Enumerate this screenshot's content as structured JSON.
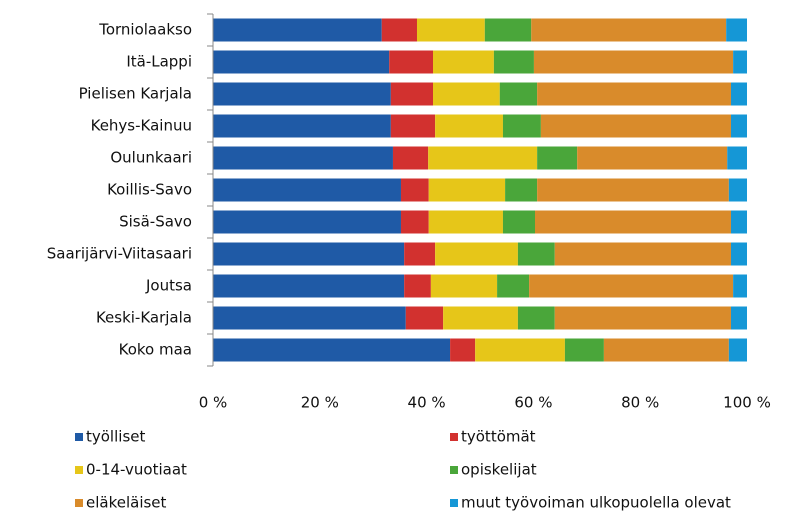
{
  "chart_data": {
    "type": "stacked-bar-horizontal",
    "categories": [
      "Torniolaakso",
      "Itä-Lappi",
      "Pielisen Karjala",
      "Kehys-Kainuu",
      "Oulunkaari",
      "Koillis-Savo",
      "Sisä-Savo",
      "Saarijärvi-Viitasaari",
      "Joutsa",
      "Keski-Karjala",
      "Koko maa"
    ],
    "series": [
      {
        "name": "työlliset",
        "color": "#1f5aa6",
        "values": [
          31.6,
          33.0,
          33.3,
          33.3,
          33.7,
          35.2,
          35.2,
          35.8,
          35.8,
          36.1,
          44.4
        ]
      },
      {
        "name": "työttömät",
        "color": "#d2312f",
        "values": [
          6.6,
          8.2,
          7.9,
          8.3,
          6.6,
          5.2,
          5.2,
          5.8,
          5.0,
          7.0,
          4.7
        ]
      },
      {
        "name": "0-14-vuotiaat",
        "color": "#e6c619",
        "values": [
          12.7,
          11.4,
          12.5,
          12.7,
          20.4,
          14.3,
          13.9,
          15.5,
          12.4,
          14.0,
          16.8
        ]
      },
      {
        "name": "opiskelijat",
        "color": "#4aa63a",
        "values": [
          8.7,
          7.5,
          7.0,
          7.1,
          7.5,
          6.0,
          6.0,
          6.9,
          6.0,
          6.9,
          7.3
        ]
      },
      {
        "name": "eläkeläiset",
        "color": "#d98b2b",
        "values": [
          36.5,
          37.3,
          36.3,
          35.6,
          28.1,
          35.9,
          36.7,
          33.0,
          38.2,
          33.0,
          23.4
        ]
      },
      {
        "name": "muut työvoiman ulkopuolella olevat",
        "color": "#1597d6",
        "values": [
          3.9,
          2.6,
          3.0,
          3.0,
          3.7,
          3.4,
          3.0,
          3.0,
          2.6,
          3.0,
          3.4
        ]
      }
    ],
    "xlim": [
      0,
      100
    ],
    "xticks": [
      {
        "value": 0,
        "label": "0 %"
      },
      {
        "value": 20,
        "label": "20 %"
      },
      {
        "value": 40,
        "label": "40 %"
      },
      {
        "value": 60,
        "label": "60 %"
      },
      {
        "value": 80,
        "label": "80 %"
      },
      {
        "value": 100,
        "label": "100 %"
      }
    ],
    "legend": "bottom"
  }
}
